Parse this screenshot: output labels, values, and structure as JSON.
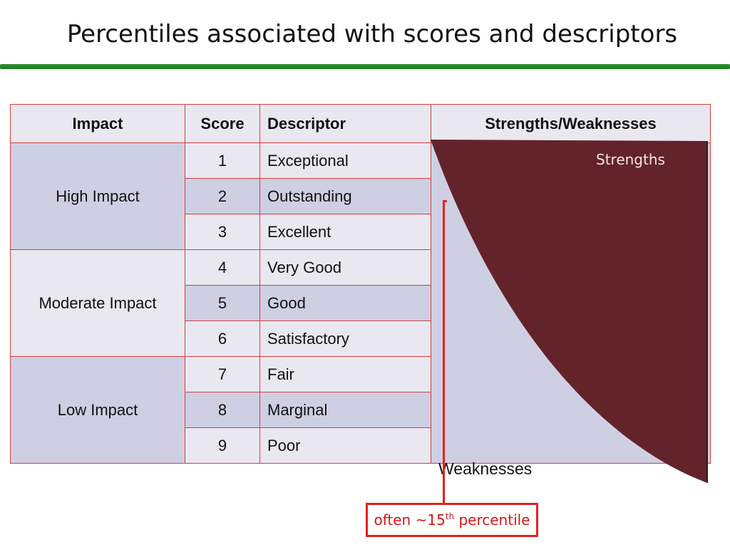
{
  "title": "Percentiles associated with scores and descriptors",
  "table": {
    "headers": {
      "impact": "Impact",
      "score": "Score",
      "descriptor": "Descriptor",
      "strengths_weaknesses": "Strengths/Weaknesses"
    },
    "groups": [
      {
        "impact": "High Impact",
        "rows": [
          {
            "score": "1",
            "descriptor": "Exceptional"
          },
          {
            "score": "2",
            "descriptor": "Outstanding"
          },
          {
            "score": "3",
            "descriptor": "Excellent"
          }
        ]
      },
      {
        "impact": "Moderate Impact",
        "rows": [
          {
            "score": "4",
            "descriptor": "Very Good"
          },
          {
            "score": "5",
            "descriptor": "Good"
          },
          {
            "score": "6",
            "descriptor": "Satisfactory"
          }
        ]
      },
      {
        "impact": "Low Impact",
        "rows": [
          {
            "score": "7",
            "descriptor": "Fair"
          },
          {
            "score": "8",
            "descriptor": "Marginal"
          },
          {
            "score": "9",
            "descriptor": "Poor"
          }
        ]
      }
    ]
  },
  "graphic": {
    "strengths_label": "Strengths",
    "weaknesses_label": "Weaknesses",
    "strengths_color": "#63232a",
    "background_color": "#cfcfe3"
  },
  "callout": {
    "prefix": "often ~15",
    "superscript": "th",
    "suffix": " percentile",
    "color": "#e52020"
  }
}
